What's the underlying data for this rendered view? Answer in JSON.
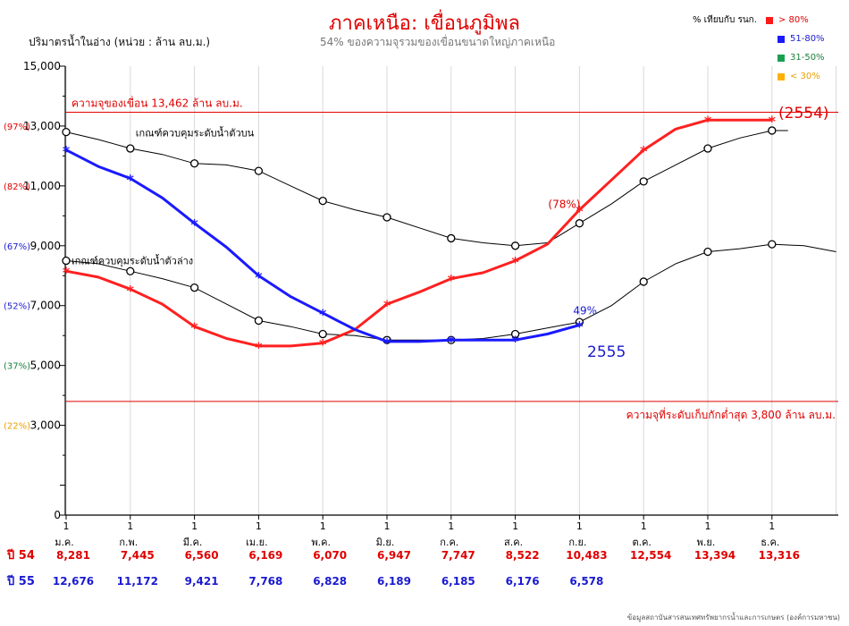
{
  "title": "ภาคเหนือ: เขื่อนภูมิพล",
  "subtitle": "54%  ของความจุรวมของเขื่อนขนาดใหญ่ภาคเหนือ",
  "y_axis_caption": "ปริมาตรน้ำในอ่าง (หน่วย : ล้าน ลบ.ม.)",
  "source": "ข้อมูลสถาบันสารสนเทศทรัพยากรน้ำและการเกษตร (องค์การมหาชน)",
  "legend": {
    "header": "% เทียบกับ รนก.",
    "items": [
      {
        "label": "> 80%",
        "color": "#ff1a1a",
        "text_color": "#e00000"
      },
      {
        "label": "51-80%",
        "color": "#1a1aff",
        "text_color": "#1a1ad0"
      },
      {
        "label": "31-50%",
        "color": "#1aa050",
        "text_color": "#1a8040"
      },
      {
        "label": "< 30%",
        "color": "#ffb000",
        "text_color": "#e8a000"
      }
    ]
  },
  "chart_data": {
    "type": "line",
    "ylim": [
      0,
      15000
    ],
    "y_ticks": [
      "0",
      "3,000",
      "5,000",
      "7,000",
      "9,000",
      "11,000",
      "13,000",
      "15,000"
    ],
    "pct_labels": [
      {
        "label": "(22%)",
        "value": 3000,
        "color": "#e8a000"
      },
      {
        "label": "(37%)",
        "value": 5000,
        "color": "#1a8040"
      },
      {
        "label": "(52%)",
        "value": 7000,
        "color": "#1a1ad0"
      },
      {
        "label": "(67%)",
        "value": 9000,
        "color": "#1a1ad0"
      },
      {
        "label": "(82%)",
        "value": 11000,
        "color": "#e00000"
      },
      {
        "label": "(97%)",
        "value": 13000,
        "color": "#e00000"
      }
    ],
    "months": [
      "ม.ค.",
      "ก.พ.",
      "มี.ค.",
      "เม.ย.",
      "พ.ค.",
      "มิ.ย.",
      "ก.ค.",
      "ส.ค.",
      "ก.ย.",
      "ต.ค.",
      "พ.ย.",
      "ธ.ค."
    ],
    "month_day": "1",
    "capacity": {
      "value": 13462,
      "label": "ความจุของเขื่อน 13,462 ล้าน ลบ.ม."
    },
    "minimum": {
      "value": 3800,
      "label": "ความจุที่ระดับเก็บกักต่ำสุด 3,800 ล้าน ลบ.ม."
    },
    "upper_rule": {
      "label": "เกณฑ์ควบคุมระดับน้ำตัวบน",
      "points": [
        [
          0,
          12800
        ],
        [
          0.5,
          12550
        ],
        [
          1,
          12250
        ],
        [
          1.5,
          12050
        ],
        [
          2,
          11750
        ],
        [
          2.5,
          11700
        ],
        [
          3,
          11500
        ],
        [
          3.5,
          11000
        ],
        [
          4,
          10500
        ],
        [
          4.5,
          10200
        ],
        [
          5,
          9950
        ],
        [
          5.5,
          9600
        ],
        [
          6,
          9250
        ],
        [
          6.5,
          9100
        ],
        [
          7,
          9000
        ],
        [
          7.5,
          9100
        ],
        [
          8,
          9750
        ],
        [
          8.5,
          10400
        ],
        [
          9,
          11150
        ],
        [
          9.5,
          11700
        ],
        [
          10,
          12250
        ],
        [
          10.5,
          12600
        ],
        [
          11,
          12850
        ],
        [
          11.25,
          12850
        ]
      ]
    },
    "lower_rule": {
      "label": "เกณฑ์ควบคุมระดับน้ำตัวล่าง",
      "points": [
        [
          0,
          8500
        ],
        [
          0.5,
          8400
        ],
        [
          1,
          8150
        ],
        [
          1.5,
          7900
        ],
        [
          2,
          7600
        ],
        [
          2.5,
          7050
        ],
        [
          3,
          6500
        ],
        [
          3.5,
          6300
        ],
        [
          4,
          6050
        ],
        [
          4.5,
          6000
        ],
        [
          5,
          5850
        ],
        [
          5.5,
          5850
        ],
        [
          6,
          5850
        ],
        [
          6.5,
          5900
        ],
        [
          7,
          6050
        ],
        [
          7.5,
          6250
        ],
        [
          8,
          6450
        ],
        [
          8.5,
          7000
        ],
        [
          9,
          7800
        ],
        [
          9.5,
          8400
        ],
        [
          10,
          8800
        ],
        [
          10.5,
          8900
        ],
        [
          11,
          9050
        ],
        [
          11.5,
          9000
        ],
        [
          12,
          8800
        ]
      ]
    },
    "series": [
      {
        "name": "ปี 54",
        "label": "(2554)",
        "color": "#ff2020",
        "row_color": "#e00000",
        "monthly": [
          "8,281",
          "7,445",
          "6,560",
          "6,169",
          "6,070",
          "6,947",
          "7,747",
          "8,522",
          "10,483",
          "12,554",
          "13,394",
          "13,316"
        ],
        "points": [
          [
            0,
            8150
          ],
          [
            0.5,
            7950
          ],
          [
            1,
            7550
          ],
          [
            1.5,
            7050
          ],
          [
            2,
            6300
          ],
          [
            2.5,
            5900
          ],
          [
            3,
            5650
          ],
          [
            3.5,
            5650
          ],
          [
            4,
            5750
          ],
          [
            4.5,
            6200
          ],
          [
            5,
            7050
          ],
          [
            5.5,
            7450
          ],
          [
            6,
            7900
          ],
          [
            6.5,
            8100
          ],
          [
            7,
            8500
          ],
          [
            7.5,
            9050
          ],
          [
            8,
            10200
          ],
          [
            8.5,
            11200
          ],
          [
            9,
            12200
          ],
          [
            9.5,
            12900
          ],
          [
            10,
            13200
          ],
          [
            10.5,
            13200
          ],
          [
            11,
            13200
          ]
        ],
        "markers": [
          [
            0,
            8150
          ],
          [
            1,
            7550
          ],
          [
            2,
            6300
          ],
          [
            3,
            5650
          ],
          [
            4,
            5750
          ],
          [
            5,
            7050
          ],
          [
            6,
            7900
          ],
          [
            7,
            8500
          ],
          [
            8,
            10200
          ],
          [
            9,
            12200
          ],
          [
            10,
            13200
          ],
          [
            11,
            13200
          ]
        ]
      },
      {
        "name": "ปี 55",
        "label": "2555",
        "color": "#1a1aff",
        "row_color": "#1a1ad0",
        "monthly": [
          "12,676",
          "11,172",
          "9,421",
          "7,768",
          "6,828",
          "6,189",
          "6,185",
          "6,176",
          "6,578"
        ],
        "points": [
          [
            0,
            12200
          ],
          [
            0.5,
            11650
          ],
          [
            1,
            11250
          ],
          [
            1.5,
            10600
          ],
          [
            2,
            9750
          ],
          [
            2.5,
            8950
          ],
          [
            3,
            8000
          ],
          [
            3.5,
            7300
          ],
          [
            4,
            6750
          ],
          [
            4.5,
            6200
          ],
          [
            5,
            5800
          ],
          [
            5.5,
            5800
          ],
          [
            6,
            5850
          ],
          [
            6.5,
            5850
          ],
          [
            7,
            5850
          ],
          [
            7.5,
            6050
          ],
          [
            8,
            6350
          ]
        ],
        "markers": [
          [
            0,
            12200
          ],
          [
            1,
            11250
          ],
          [
            2,
            9750
          ],
          [
            3,
            8000
          ],
          [
            4,
            6750
          ],
          [
            5,
            5800
          ],
          [
            6,
            5850
          ],
          [
            7,
            5850
          ],
          [
            8,
            6350
          ]
        ]
      }
    ],
    "annotations": [
      {
        "text": "(78%)",
        "x": 8,
        "y": 10200,
        "color": "#e00000"
      },
      {
        "text": "49%",
        "x": 8,
        "y": 6350,
        "color": "#1a1ad0"
      }
    ]
  }
}
